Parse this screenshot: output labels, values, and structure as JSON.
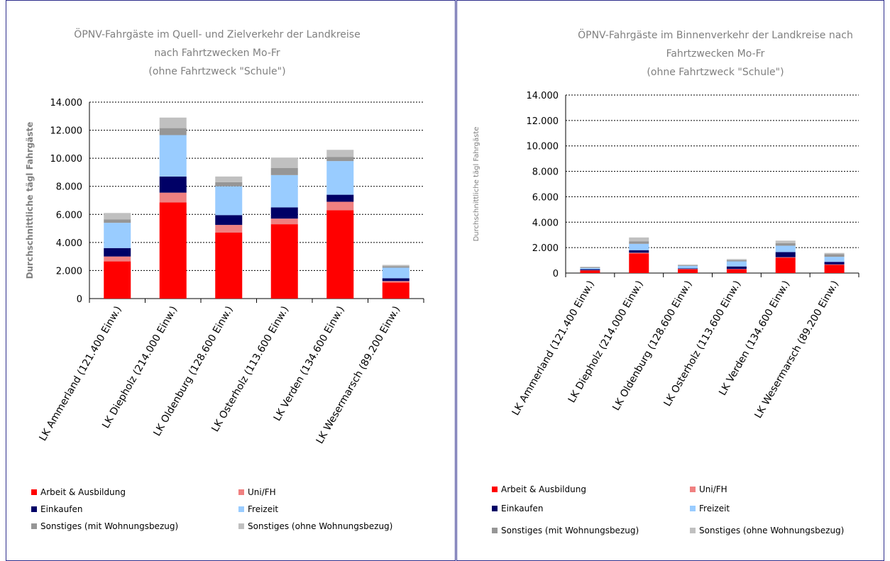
{
  "chart_data": [
    {
      "type": "bar",
      "stacked": true,
      "title": "ÖPNV-Fahrgäste im Quell- und Zielverkehr der Landkreise nach Fahrtzwecken Mo-Fr (ohne Fahrtzweck \"Schule\")",
      "title_lines": [
        "ÖPNV-Fahrgäste im Quell- und Zielverkehr der Landkreise",
        "nach Fahrtzwecken Mo-Fr",
        "(ohne Fahrtzweck \"Schule\")"
      ],
      "ylabel": "Durchschnittliche tägl Fahrgäste",
      "xlabel": "",
      "ylim": [
        0,
        14000
      ],
      "yticks": [
        "0",
        "2.000",
        "4.000",
        "6.000",
        "8.000",
        "10.000",
        "12.000",
        "14.000"
      ],
      "grid": true,
      "legend_position": "bottom",
      "categories": [
        "LK Ammerland (121.400 Einw.)",
        "LK Diepholz (214.000 Einw.)",
        "LK Oldenburg (128.600 Einw.)",
        "LK Osterholz (113.600 Einw.)",
        "LK Verden (134.600 Einw.)",
        "LK Wesermarsch (89.200 Einw.)"
      ],
      "series": [
        {
          "name": "Arbeit & Ausbildung",
          "color": "#ff0000",
          "values": [
            2650,
            6850,
            4700,
            5300,
            6300,
            1150
          ]
        },
        {
          "name": "Uni/FH",
          "color": "#f08080",
          "values": [
            350,
            700,
            550,
            400,
            600,
            100
          ]
        },
        {
          "name": "Einkaufen",
          "color": "#000066",
          "values": [
            600,
            1150,
            700,
            800,
            500,
            200
          ]
        },
        {
          "name": "Freizeit",
          "color": "#99ccff",
          "values": [
            1800,
            2950,
            2050,
            2300,
            2400,
            750
          ]
        },
        {
          "name": "Sonstiges (mit Wohnungsbezug)",
          "color": "#969696",
          "values": [
            250,
            500,
            300,
            500,
            300,
            100
          ]
        },
        {
          "name": "Sonstiges (ohne Wohnungsbezug)",
          "color": "#c0c0c0",
          "values": [
            450,
            750,
            400,
            750,
            500,
            100
          ]
        }
      ]
    },
    {
      "type": "bar",
      "stacked": true,
      "title": "ÖPNV-Fahrgäste im Binnenverkehr der Landkreise nach Fahrtzwecken Mo-Fr (ohne Fahrtzweck \"Schule\")",
      "title_lines": [
        "ÖPNV-Fahrgäste im Binnenverkehr der Landkreise nach",
        "Fahrtzwecken Mo-Fr",
        "(ohne Fahrtzweck \"Schule\")"
      ],
      "ylabel": "Durchschnittliche tägl Fahrgäste",
      "xlabel": "",
      "ylim": [
        0,
        14000
      ],
      "yticks": [
        "0",
        "2.000",
        "4.000",
        "6.000",
        "8.000",
        "10.000",
        "12.000",
        "14.000"
      ],
      "grid": true,
      "legend_position": "bottom",
      "categories": [
        "LK Ammerland (121.400 Einw.)",
        "LK Diepholz (214.000 Einw.)",
        "LK Oldenburg (128.600 Einw.)",
        "LK Osterholz (113.600 Einw.)",
        "LK Verden (134.600 Einw.)",
        "LK Wesermarsch (89.200 Einw.)"
      ],
      "series": [
        {
          "name": "Arbeit & Ausbildung",
          "color": "#ff0000",
          "values": [
            200,
            1550,
            300,
            300,
            1200,
            650
          ]
        },
        {
          "name": "Uni/FH",
          "color": "#f08080",
          "values": [
            20,
            50,
            20,
            20,
            50,
            30
          ]
        },
        {
          "name": "Einkaufen",
          "color": "#000066",
          "values": [
            80,
            200,
            50,
            200,
            400,
            200
          ]
        },
        {
          "name": "Freizeit",
          "color": "#99ccff",
          "values": [
            100,
            500,
            200,
            400,
            500,
            400
          ]
        },
        {
          "name": "Sonstiges (mit Wohnungsbezug)",
          "color": "#969696",
          "values": [
            50,
            200,
            50,
            100,
            200,
            200
          ]
        },
        {
          "name": "Sonstiges (ohne Wohnungsbezug)",
          "color": "#c0c0c0",
          "values": [
            50,
            300,
            50,
            80,
            200,
            100
          ]
        }
      ]
    }
  ]
}
